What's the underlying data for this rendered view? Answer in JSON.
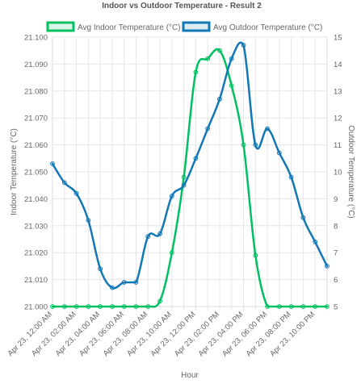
{
  "chart_data": {
    "type": "line",
    "title": "Indoor vs Outdoor Temperature - Result 2",
    "xlabel": "Hour",
    "ylabel_left": "Indoor Temperature (°C)",
    "ylabel_right": "Outdoor Temperature (°C)",
    "x": [
      "Apr 23, 12:00 AM",
      "Apr 23, 01:00 AM",
      "Apr 23, 02:00 AM",
      "Apr 23, 03:00 AM",
      "Apr 23, 04:00 AM",
      "Apr 23, 05:00 AM",
      "Apr 23, 06:00 AM",
      "Apr 23, 07:00 AM",
      "Apr 23, 08:00 AM",
      "Apr 23, 09:00 AM",
      "Apr 23, 10:00 AM",
      "Apr 23, 11:00 AM",
      "Apr 23, 12:00 PM",
      "Apr 23, 01:00 PM",
      "Apr 23, 02:00 PM",
      "Apr 23, 03:00 PM",
      "Apr 23, 04:00 PM",
      "Apr 23, 05:00 PM",
      "Apr 23, 06:00 PM",
      "Apr 23, 07:00 PM",
      "Apr 23, 08:00 PM",
      "Apr 23, 09:00 PM",
      "Apr 23, 10:00 PM",
      "Apr 23, 11:00 PM"
    ],
    "x_tick_labels": [
      "Apr 23, 12:00 AM",
      "Apr 23, 02:00 AM",
      "Apr 23, 04:00 AM",
      "Apr 23, 06:00 AM",
      "Apr 23, 08:00 AM",
      "Apr 23, 10:00 AM",
      "Apr 23, 12:00 PM",
      "Apr 23, 02:00 PM",
      "Apr 23, 04:00 PM",
      "Apr 23, 06:00 PM",
      "Apr 23, 08:00 PM",
      "Apr 23, 10:00 PM"
    ],
    "y_left_ticks": [
      "21.000",
      "21.010",
      "21.020",
      "21.030",
      "21.040",
      "21.050",
      "21.060",
      "21.070",
      "21.080",
      "21.090",
      "21.100"
    ],
    "y_right_ticks": [
      "5",
      "6",
      "7",
      "8",
      "9",
      "10",
      "11",
      "12",
      "13",
      "14",
      "15"
    ],
    "ylim_left": [
      21.0,
      21.1
    ],
    "ylim_right": [
      5,
      15
    ],
    "grid": true,
    "legend_position": "top",
    "series": [
      {
        "name": "Avg Indoor Temperature (°C)",
        "axis": "left",
        "color": "#00c061",
        "values": [
          21.0,
          21.0,
          21.0,
          21.0,
          21.0,
          21.0,
          21.0,
          21.0,
          21.0,
          21.002,
          21.02,
          21.048,
          21.087,
          21.092,
          21.095,
          21.082,
          21.06,
          21.019,
          21.0,
          21.0,
          21.0,
          21.0,
          21.0,
          21.0
        ]
      },
      {
        "name": "Avg Outdoor Temperature (°C)",
        "axis": "right",
        "color": "#1277b5",
        "values": [
          10.3,
          9.6,
          9.2,
          8.2,
          6.4,
          5.7,
          5.9,
          5.9,
          7.6,
          7.7,
          9.1,
          9.5,
          10.5,
          11.6,
          12.7,
          14.2,
          14.7,
          11.0,
          11.6,
          10.7,
          9.8,
          8.3,
          7.4,
          6.5
        ]
      }
    ]
  }
}
